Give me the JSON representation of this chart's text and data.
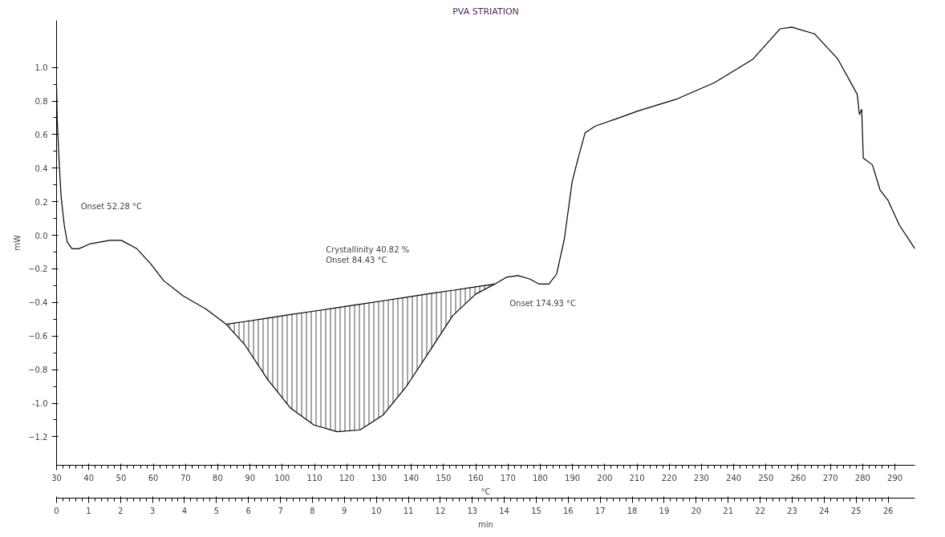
{
  "chart_data": {
    "type": "line",
    "title": "PVA STRIATION",
    "ylabel": "mW",
    "xlabel": "°C",
    "x2label": "min",
    "xlim": [
      30,
      296.2
    ],
    "ylim": [
      -1.37,
      1.28
    ],
    "xticks": [
      30,
      40,
      50,
      60,
      70,
      80,
      90,
      100,
      110,
      120,
      130,
      140,
      150,
      160,
      170,
      180,
      190,
      200,
      210,
      220,
      230,
      240,
      250,
      260,
      270,
      280,
      290
    ],
    "x2lim": [
      0,
      26.84
    ],
    "x2ticks": [
      0,
      1,
      2,
      3,
      4,
      5,
      6,
      7,
      8,
      9,
      10,
      11,
      12,
      13,
      14,
      15,
      16,
      17,
      18,
      19,
      20,
      21,
      22,
      23,
      24,
      25,
      26
    ],
    "yticks": [
      -1.2,
      {
        "value": -1.0,
        "label": "-1.0"
      },
      -0.8,
      -0.6,
      -0.4,
      -0.2,
      {
        "value": 0.0,
        "label": "0.0"
      },
      0.2,
      0.4,
      0.6,
      0.8,
      {
        "value": 1.0,
        "label": "1.0"
      }
    ],
    "grid": false,
    "marker": "none",
    "line_style": "solid",
    "series": [
      {
        "color": "#000000",
        "x": [
          30.0,
          30.2,
          30.7,
          31.4,
          32.4,
          33.3,
          34.8,
          36.9,
          40.5,
          46.5,
          50.1,
          54.9,
          59.2,
          63.2,
          69.2,
          76.4,
          82.6,
          88.3,
          95.5,
          102.6,
          109.8,
          117.0,
          124.1,
          131.3,
          138.5,
          145.7,
          152.8,
          160.0,
          166.0,
          169.5,
          173.1,
          176.7,
          179.6,
          182.7,
          185.1,
          187.5,
          189.9,
          191.5,
          193.9,
          197.0,
          203.0,
          210.2,
          222.1,
          234.1,
          246.0,
          254.4,
          258.0,
          265.1,
          272.3,
          278.3,
          279.0,
          279.7,
          280.2,
          283.0,
          285.4,
          287.8,
          291.4,
          296.2
        ],
        "values": [
          0.9,
          0.69,
          0.48,
          0.23,
          0.06,
          -0.04,
          -0.08,
          -0.08,
          -0.05,
          -0.03,
          -0.03,
          -0.08,
          -0.17,
          -0.27,
          -0.36,
          -0.44,
          -0.53,
          -0.65,
          -0.86,
          -1.03,
          -1.13,
          -1.17,
          -1.16,
          -1.07,
          -0.9,
          -0.69,
          -0.48,
          -0.35,
          -0.29,
          -0.25,
          -0.24,
          -0.26,
          -0.29,
          -0.29,
          -0.23,
          -0.02,
          0.32,
          0.44,
          0.61,
          0.65,
          0.69,
          0.74,
          0.81,
          0.91,
          1.05,
          1.23,
          1.24,
          1.2,
          1.05,
          0.84,
          0.72,
          0.75,
          0.46,
          0.42,
          0.27,
          0.21,
          0.06,
          -0.08
        ]
      },
      {
        "color": "#000000",
        "x": [
          82.6,
          88.3,
          95.5,
          102.6,
          109.8,
          117.0,
          124.1,
          131.3,
          138.5,
          145.7,
          152.8,
          160.0,
          166.0
        ],
        "values": [
          -0.53,
          -0.514,
          -0.493,
          -0.472,
          -0.452,
          -0.431,
          -0.411,
          -0.39,
          -0.369,
          -0.348,
          -0.328,
          -0.307,
          -0.29
        ],
        "upper": [
          -0.53,
          -0.514,
          -0.493,
          -0.472,
          -0.452,
          -0.431,
          -0.411,
          -0.39,
          -0.369,
          -0.348,
          -0.328,
          -0.307,
          -0.29
        ],
        "lower": [
          -0.53,
          -0.65,
          -0.86,
          -1.03,
          -1.13,
          -1.17,
          -1.16,
          -1.07,
          -0.9,
          -0.69,
          -0.48,
          -0.35,
          -0.29
        ]
      }
    ],
    "annotations": [
      "Onset   52.28 °C",
      "Crystallinity   40.82 %\nOnset              84.43 °C",
      "Onset   174.93 °C"
    ]
  }
}
